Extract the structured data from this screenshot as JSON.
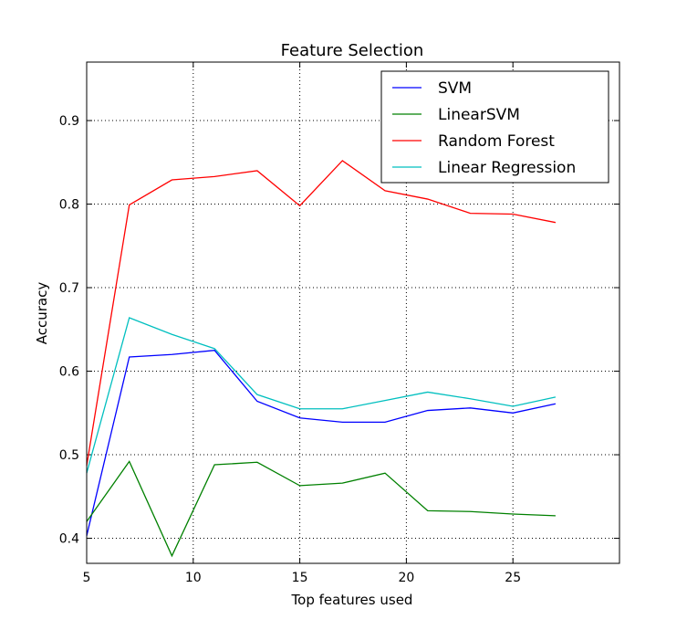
{
  "chart_data": {
    "type": "line",
    "title": "Feature Selection",
    "xlabel": "Top features used",
    "ylabel": "Accuracy",
    "xlim": [
      5,
      30
    ],
    "ylim": [
      0.37,
      0.97
    ],
    "xticks": [
      5,
      10,
      15,
      20,
      25
    ],
    "xtick_labels": [
      "5",
      "10",
      "15",
      "20",
      "25"
    ],
    "yticks": [
      0.4,
      0.5,
      0.6,
      0.7,
      0.8,
      0.9
    ],
    "ytick_labels": [
      "0.4",
      "0.5",
      "0.6",
      "0.7",
      "0.8",
      "0.9"
    ],
    "grid": true,
    "legend_position": "top-right",
    "x": [
      5,
      7,
      9,
      11,
      13,
      15,
      17,
      19,
      21,
      23,
      25,
      27
    ],
    "series": [
      {
        "name": "SVM",
        "color": "#0000ff",
        "values": [
          0.403,
          0.617,
          0.62,
          0.625,
          0.564,
          0.544,
          0.539,
          0.539,
          0.553,
          0.556,
          0.55,
          0.561
        ]
      },
      {
        "name": "LinearSVM",
        "color": "#008000",
        "values": [
          0.42,
          0.492,
          0.379,
          0.488,
          0.491,
          0.463,
          0.466,
          0.478,
          0.433,
          0.432,
          0.429,
          0.427
        ]
      },
      {
        "name": "Random Forest",
        "color": "#ff0000",
        "values": [
          0.487,
          0.799,
          0.829,
          0.833,
          0.84,
          0.798,
          0.852,
          0.816,
          0.806,
          0.789,
          0.788,
          0.778
        ]
      },
      {
        "name": "Linear Regression",
        "color": "#00bfbf",
        "values": [
          0.478,
          0.664,
          0.644,
          0.627,
          0.572,
          0.555,
          0.555,
          0.565,
          0.575,
          0.567,
          0.558,
          0.569
        ]
      }
    ]
  }
}
